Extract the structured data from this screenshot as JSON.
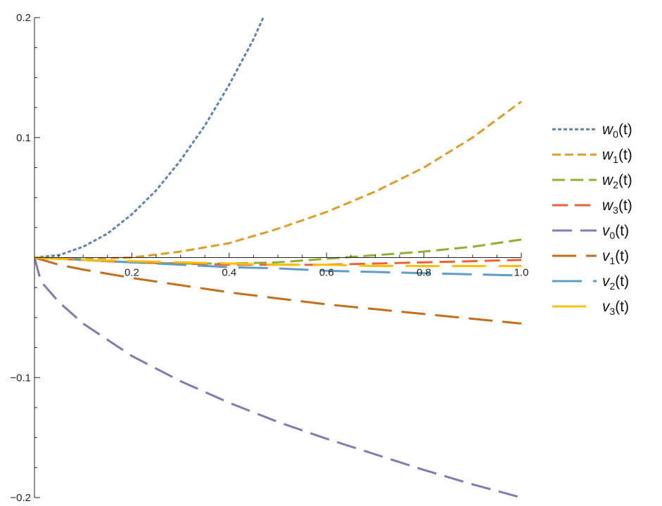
{
  "chart_data": {
    "type": "line",
    "xlim": [
      0,
      1.0
    ],
    "ylim": [
      -0.2,
      0.2
    ],
    "x_ticks": [
      {
        "value": 0.2,
        "label": "0.2"
      },
      {
        "value": 0.4,
        "label": "0.4"
      },
      {
        "value": 0.6,
        "label": "0.6"
      },
      {
        "value": 0.8,
        "label": "0.8"
      },
      {
        "value": 1.0,
        "label": "1.0"
      }
    ],
    "y_ticks": [
      {
        "value": 0.2,
        "label": "0.2"
      },
      {
        "value": 0.1,
        "label": "0.1"
      },
      {
        "value": -0.1,
        "label": "−0.1"
      },
      {
        "value": -0.2,
        "label": "−0.2"
      }
    ],
    "grid": false,
    "legend_position": "right",
    "series": [
      {
        "name": "w0(t)",
        "var": "w",
        "sub": "0",
        "arg": "(t)",
        "color": "#5E81B5",
        "dash": "5,3",
        "x": [
          0,
          0.05,
          0.1,
          0.15,
          0.2,
          0.25,
          0.3,
          0.35,
          0.4,
          0.45,
          0.47
        ],
        "y": [
          0,
          0.002,
          0.009,
          0.02,
          0.036,
          0.056,
          0.081,
          0.11,
          0.144,
          0.182,
          0.2
        ]
      },
      {
        "name": "w1(t)",
        "var": "w",
        "sub": "1",
        "arg": "(t)",
        "color": "#E19C24",
        "dash": "12,6",
        "x": [
          0,
          0.1,
          0.2,
          0.3,
          0.4,
          0.5,
          0.6,
          0.7,
          0.8,
          0.9,
          1.0
        ],
        "y": [
          0,
          -0.001,
          0.0,
          0.005,
          0.012,
          0.024,
          0.038,
          0.055,
          0.075,
          0.1,
          0.13
        ]
      },
      {
        "name": "w2(t)",
        "var": "w",
        "sub": "2",
        "arg": "(t)",
        "color": "#8FB032",
        "dash": "18,8",
        "x": [
          0,
          0.1,
          0.2,
          0.3,
          0.4,
          0.5,
          0.6,
          0.7,
          0.8,
          0.9,
          1.0
        ],
        "y": [
          0,
          -0.002,
          -0.004,
          -0.005,
          -0.005,
          -0.004,
          -0.001,
          0.002,
          0.005,
          0.009,
          0.015
        ]
      },
      {
        "name": "w3(t)",
        "var": "w",
        "sub": "3",
        "arg": "(t)",
        "color": "#EB6235",
        "dash": "22,10",
        "x": [
          0,
          0.1,
          0.2,
          0.3,
          0.4,
          0.5,
          0.6,
          0.7,
          0.8,
          0.9,
          1.0
        ],
        "y": [
          0,
          -0.002,
          -0.004,
          -0.005,
          -0.006,
          -0.006,
          -0.006,
          -0.005,
          -0.004,
          -0.003,
          -0.002
        ]
      },
      {
        "name": "v0(t)",
        "var": "v",
        "sub": "0",
        "arg": "(t)",
        "color": "#8778B3",
        "dash": "28,12",
        "x": [
          0,
          0.01,
          0.02,
          0.05,
          0.1,
          0.2,
          0.3,
          0.4,
          0.5,
          0.6,
          0.7,
          0.8,
          0.9,
          1.0
        ],
        "y": [
          0,
          -0.015,
          -0.023,
          -0.037,
          -0.055,
          -0.082,
          -0.103,
          -0.121,
          -0.137,
          -0.151,
          -0.164,
          -0.177,
          -0.189,
          -0.2
        ]
      },
      {
        "name": "v1(t)",
        "var": "v",
        "sub": "1",
        "arg": "(t)",
        "color": "#C56E1A",
        "dash": "34,14",
        "x": [
          0,
          0.05,
          0.1,
          0.2,
          0.3,
          0.4,
          0.5,
          0.6,
          0.7,
          0.8,
          0.9,
          1.0
        ],
        "y": [
          0,
          -0.006,
          -0.01,
          -0.017,
          -0.023,
          -0.029,
          -0.034,
          -0.039,
          -0.043,
          -0.047,
          -0.051,
          -0.055
        ]
      },
      {
        "name": "v2(t)",
        "var": "v",
        "sub": "2",
        "arg": "(t)",
        "color": "#5D9EC7",
        "dash": "42,16",
        "x": [
          0,
          0.1,
          0.2,
          0.3,
          0.4,
          0.5,
          0.6,
          0.7,
          0.8,
          0.9,
          1.0
        ],
        "y": [
          0,
          -0.002,
          -0.004,
          -0.006,
          -0.008,
          -0.009,
          -0.011,
          -0.012,
          -0.013,
          -0.014,
          -0.015
        ]
      },
      {
        "name": "v3(t)",
        "var": "v",
        "sub": "3",
        "arg": "(t)",
        "color": "#FFBF00",
        "dash": "48,18",
        "x": [
          0,
          0.1,
          0.2,
          0.3,
          0.4,
          0.5,
          0.6,
          0.7,
          0.8,
          0.9,
          1.0
        ],
        "y": [
          0,
          -0.002,
          -0.003,
          -0.004,
          -0.005,
          -0.006,
          -0.006,
          -0.007,
          -0.007,
          -0.007,
          -0.007
        ]
      }
    ]
  }
}
